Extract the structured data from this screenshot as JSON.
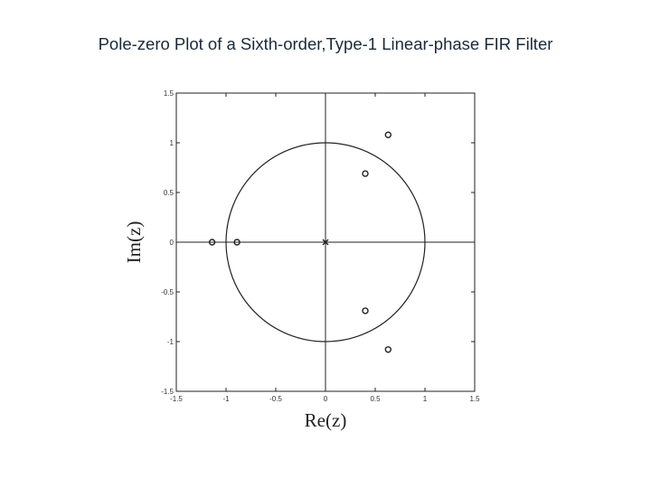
{
  "title": "Pole-zero Plot of a Sixth-order,Type-1 Linear-phase FIR Filter",
  "chart_data": {
    "type": "scatter",
    "title": "Pole-zero Plot of a Sixth-order,Type-1 Linear-phase FIR Filter",
    "xlabel": "Re(z)",
    "ylabel": "Im(z)",
    "xlim": [
      -1.5,
      1.5
    ],
    "ylim": [
      -1.5,
      1.5
    ],
    "xticks": [
      "-1.5",
      "-1",
      "-0.5",
      "0",
      "0.5",
      "1",
      "1.5"
    ],
    "yticks": [
      "1.5",
      "1",
      "0.5",
      "0",
      "-0.5",
      "-1",
      "-1.5"
    ],
    "grid": false,
    "unit_circle": true,
    "zeros": [
      {
        "re": 0.63,
        "im": 1.08
      },
      {
        "re": 0.4,
        "im": 0.69
      },
      {
        "re": -1.14,
        "im": 0.0
      },
      {
        "re": -0.89,
        "im": 0.0
      },
      {
        "re": 0.4,
        "im": -0.69
      },
      {
        "re": 0.63,
        "im": -1.08
      }
    ],
    "poles": [
      {
        "re": 0.0,
        "im": 0.0
      }
    ]
  }
}
